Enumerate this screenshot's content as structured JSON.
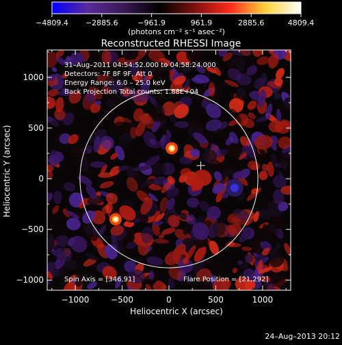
{
  "colorbar": {
    "ticks": [
      "-4809.4",
      "-2885.6",
      "-961.9",
      "961.9",
      "2885.6",
      "4809.4"
    ],
    "unit_label": "(photons cm⁻² s⁻¹ asec⁻²)",
    "range": [
      -4809.4,
      4809.4
    ]
  },
  "chart_data": {
    "type": "heatmap",
    "title": "Reconstructed RHESSI Image",
    "xlabel": "Heliocentric X (arcsec)",
    "ylabel": "Heliocentric Y (arcsec)",
    "xlim": [
      -1300,
      1300
    ],
    "ylim": [
      -1100,
      1270
    ],
    "x_ticks": [
      "−1000",
      "−500",
      "0",
      "500",
      "1000"
    ],
    "x_tick_values": [
      -1000,
      -500,
      0,
      500,
      1000
    ],
    "y_ticks": [
      "1000",
      "500",
      "0",
      "−500",
      "−1000"
    ],
    "y_tick_values": [
      1000,
      500,
      0,
      -500,
      -1000
    ],
    "annotations": [
      "31–Aug–2011 04:54:52.000 to 04:58:24.000",
      "Detectors: 7F 8F 9F, Att 0",
      "Energy Range: 6.0 – 25.0 keV",
      "Back Projection    Total counts: 1.88E+04"
    ],
    "spin_axis": "Spin Axis = [346,91]",
    "flare_position": "Flare Position = [21,292]",
    "limb_radius": 950,
    "flare_marker": [
      340,
      130
    ],
    "bright_sources": [
      {
        "x": 30,
        "y": 300,
        "value": 4809.4
      },
      {
        "x": -570,
        "y": -400,
        "value": 3800
      },
      {
        "x": 700,
        "y": -90,
        "value": -3200
      }
    ],
    "grid": false,
    "colormap": [
      "#0000ff",
      "#5a2a9a",
      "#3a1a55",
      "#000000",
      "#7a1010",
      "#ff2a1a",
      "#ffd23a",
      "#ffffff"
    ]
  },
  "footer": {
    "date": "24–Aug–2013 20:12"
  }
}
